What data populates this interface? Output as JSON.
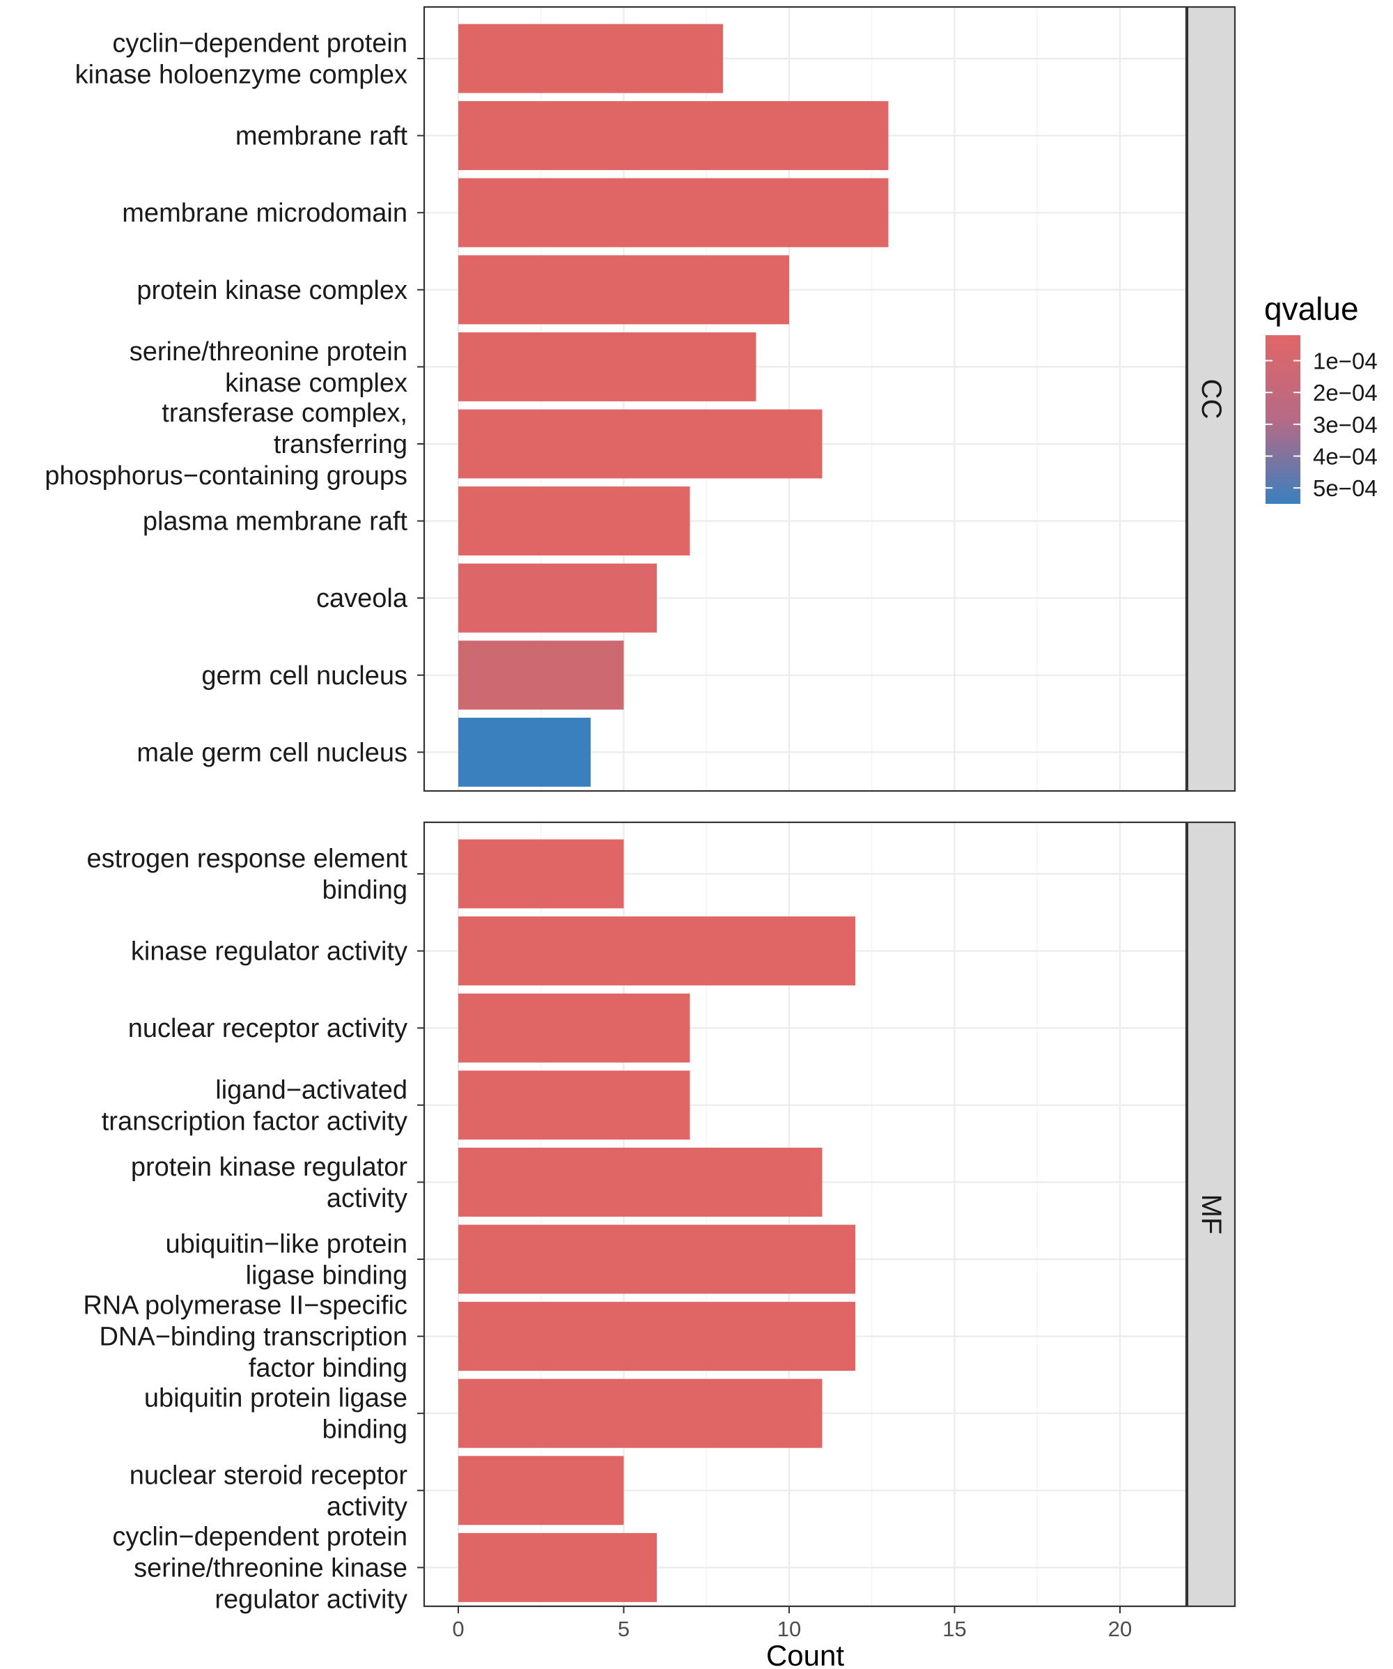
{
  "chart_data": {
    "type": "bar",
    "orientation": "horizontal",
    "xlabel": "Count",
    "xlim": [
      0,
      22
    ],
    "xticks": [
      0,
      5,
      10,
      15,
      20
    ],
    "grid": true,
    "legend": {
      "title": "qvalue",
      "position": "right",
      "labels": [
        "1e−04",
        "2e−04",
        "3e−04",
        "4e−04",
        "5e−04"
      ],
      "values": [
        0.0001,
        0.0002,
        0.0003,
        0.0004,
        0.0005
      ],
      "range": [
        2e-05,
        0.00055
      ],
      "color_low": "#E06666",
      "color_high": "#3A80BE"
    },
    "panels": [
      {
        "name": "CC",
        "terms": [
          {
            "label": [
              "cyclin−dependent protein",
              "kinase holoenzyme complex"
            ],
            "count": 8,
            "qvalue": 2e-05
          },
          {
            "label": [
              "membrane raft"
            ],
            "count": 13,
            "qvalue": 2e-05
          },
          {
            "label": [
              "membrane microdomain"
            ],
            "count": 13,
            "qvalue": 2e-05
          },
          {
            "label": [
              "protein kinase complex"
            ],
            "count": 10,
            "qvalue": 2e-05
          },
          {
            "label": [
              "serine/threonine protein",
              "kinase complex"
            ],
            "count": 9,
            "qvalue": 2e-05
          },
          {
            "label": [
              "transferase complex,",
              "transferring",
              "phosphorus−containing groups"
            ],
            "count": 11,
            "qvalue": 2e-05
          },
          {
            "label": [
              "plasma membrane raft"
            ],
            "count": 7,
            "qvalue": 2e-05
          },
          {
            "label": [
              "caveola"
            ],
            "count": 6,
            "qvalue": 3e-05
          },
          {
            "label": [
              "germ cell nucleus"
            ],
            "count": 5,
            "qvalue": 8e-05
          },
          {
            "label": [
              "male germ cell nucleus"
            ],
            "count": 4,
            "qvalue": 0.00055
          }
        ]
      },
      {
        "name": "MF",
        "terms": [
          {
            "label": [
              "estrogen response element",
              "binding"
            ],
            "count": 5,
            "qvalue": 2e-05
          },
          {
            "label": [
              "kinase regulator activity"
            ],
            "count": 12,
            "qvalue": 2e-05
          },
          {
            "label": [
              "nuclear receptor activity"
            ],
            "count": 7,
            "qvalue": 2e-05
          },
          {
            "label": [
              "ligand−activated",
              "transcription factor activity"
            ],
            "count": 7,
            "qvalue": 2e-05
          },
          {
            "label": [
              "protein kinase regulator",
              "activity"
            ],
            "count": 11,
            "qvalue": 2e-05
          },
          {
            "label": [
              "ubiquitin−like protein",
              "ligase binding"
            ],
            "count": 12,
            "qvalue": 2e-05
          },
          {
            "label": [
              "RNA polymerase II−specific",
              "DNA−binding transcription",
              "factor binding"
            ],
            "count": 12,
            "qvalue": 2e-05
          },
          {
            "label": [
              "ubiquitin protein ligase",
              "binding"
            ],
            "count": 11,
            "qvalue": 2e-05
          },
          {
            "label": [
              "nuclear steroid receptor",
              "activity"
            ],
            "count": 5,
            "qvalue": 2e-05
          },
          {
            "label": [
              "cyclin−dependent protein",
              "serine/threonine kinase",
              "regulator activity"
            ],
            "count": 6,
            "qvalue": 2e-05
          }
        ]
      }
    ]
  }
}
